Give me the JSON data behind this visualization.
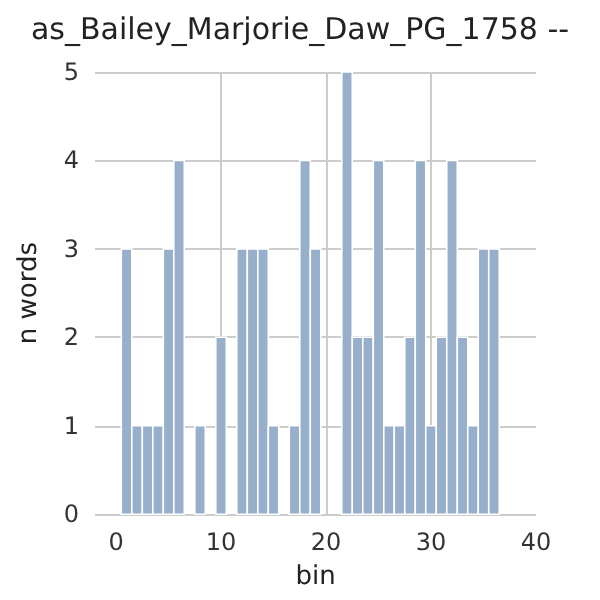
{
  "chart_data": {
    "type": "histogram",
    "title": "as_Bailey_Marjorie_Daw_PG_1758 --",
    "xlabel": "bin",
    "ylabel": "n words",
    "bins": [
      0.5,
      1.5,
      2.5,
      3.5,
      4.5,
      5.5,
      6.5,
      7.5,
      8.5,
      9.5,
      10.5,
      11.5,
      12.5,
      13.5,
      14.5,
      15.5,
      16.5,
      17.5,
      18.5,
      19.5,
      20.5,
      21.5,
      22.5,
      23.5,
      24.5,
      25.5,
      26.5,
      27.5,
      28.5,
      29.5,
      30.5,
      31.5,
      32.5,
      33.5,
      34.5,
      35.5,
      36.5
    ],
    "values": [
      3,
      1,
      1,
      1,
      3,
      4,
      0,
      1,
      0,
      2,
      0,
      3,
      3,
      3,
      1,
      0,
      1,
      4,
      3,
      0,
      0,
      5,
      2,
      2,
      4,
      1,
      1,
      2,
      4,
      1,
      2,
      4,
      2,
      1,
      3,
      3
    ],
    "color": "#97afcb",
    "xlim": [
      -2,
      40
    ],
    "ylim": [
      0,
      5
    ],
    "xticks": [
      0,
      10,
      20,
      30,
      40
    ],
    "yticks": [
      0,
      1,
      2,
      3,
      4,
      5
    ],
    "grid": true
  }
}
